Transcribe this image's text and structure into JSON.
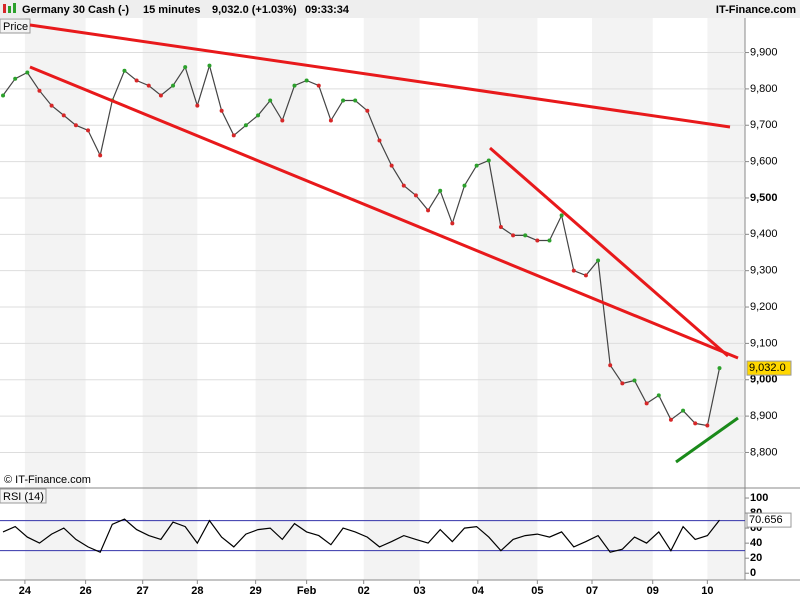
{
  "header": {
    "title": "Germany 30 Cash (-)",
    "interval": "15 minutes",
    "price": "9,032.0 (+1.03%)",
    "time": "09:33:34",
    "brand": "IT-Finance.com"
  },
  "chart_data": [
    {
      "type": "line",
      "label": "Price",
      "watermark": "© IT-Finance.com",
      "color": "#444444",
      "up_color": "#2ca02c",
      "down_color": "#d62728",
      "values": [
        9782,
        9828,
        9845,
        9795,
        9754,
        9727,
        9700,
        9686,
        9617,
        9768,
        9850,
        9823,
        9809,
        9782,
        9809,
        9860,
        9754,
        9864,
        9740,
        9672,
        9700,
        9727,
        9768,
        9713,
        9809,
        9823,
        9809,
        9713,
        9768,
        9768,
        9740,
        9658,
        9589,
        9534,
        9507,
        9466,
        9520,
        9430,
        9534,
        9589,
        9603,
        9420,
        9397,
        9397,
        9383,
        9383,
        9452,
        9300,
        9287,
        9328,
        9040,
        8990,
        8998,
        8935,
        8957,
        8890,
        8915,
        8880,
        8874,
        9032
      ],
      "value_labels": [
        null,
        null,
        null,
        null,
        null,
        null,
        null,
        null,
        null,
        null,
        null,
        null,
        null,
        null,
        null,
        null,
        null,
        null,
        null,
        null,
        null,
        null,
        null,
        null,
        null,
        null,
        null,
        null,
        null,
        null,
        null,
        null,
        null,
        null,
        null,
        null,
        null,
        null,
        null,
        null,
        null,
        null,
        null,
        null,
        null,
        null,
        null,
        null,
        null,
        null,
        null,
        null,
        null,
        null,
        null,
        null,
        null,
        null,
        null,
        "9,032.0"
      ],
      "xlim": [
        -0.25,
        61.1
      ],
      "ylim": [
        8705,
        9995
      ],
      "yticks": [
        {
          "value": 9900,
          "label": "9,900"
        },
        {
          "value": 9800,
          "label": "9,800"
        },
        {
          "value": 9700,
          "label": "9,700"
        },
        {
          "value": 9600,
          "label": "9,600"
        },
        {
          "value": 9500,
          "label": "9,500"
        },
        {
          "value": 9400,
          "label": "9,400"
        },
        {
          "value": 9300,
          "label": "9,300"
        },
        {
          "value": 9200,
          "label": "9,200"
        },
        {
          "value": 9100,
          "label": "9,100"
        },
        {
          "value": 9000,
          "label": "9,000"
        },
        {
          "value": 8900,
          "label": "8,900"
        },
        {
          "value": 8800,
          "label": "8,800"
        }
      ],
      "grid": true
    },
    {
      "type": "line",
      "label": "RSI (14)",
      "color": "#000000",
      "values": [
        55,
        62,
        48,
        40,
        52,
        60,
        45,
        35,
        28,
        65,
        72,
        58,
        50,
        45,
        68,
        62,
        40,
        70,
        48,
        35,
        52,
        58,
        60,
        45,
        66,
        55,
        50,
        38,
        60,
        55,
        48,
        35,
        42,
        50,
        45,
        40,
        58,
        42,
        60,
        62,
        48,
        30,
        45,
        50,
        52,
        48,
        55,
        35,
        42,
        50,
        28,
        32,
        48,
        40,
        55,
        30,
        62,
        45,
        50,
        70.656
      ],
      "levels": [
        70,
        30
      ],
      "level_color": "#3333aa",
      "xlim": [
        -0.25,
        61.1
      ],
      "ylim": [
        -9,
        112
      ],
      "yticks": [
        100,
        80,
        60,
        40,
        20,
        0
      ],
      "xticks": [
        {
          "value": 1.8,
          "label": "24"
        },
        {
          "value": 6.8,
          "label": "26"
        },
        {
          "value": 11.5,
          "label": "27"
        },
        {
          "value": 16,
          "label": "28"
        },
        {
          "value": 20.8,
          "label": "29"
        },
        {
          "value": 25,
          "label": "Feb"
        },
        {
          "value": 29.7,
          "label": "02"
        },
        {
          "value": 34.3,
          "label": "03"
        },
        {
          "value": 39.1,
          "label": "04"
        },
        {
          "value": 44,
          "label": "05"
        },
        {
          "value": 48.5,
          "label": "07"
        },
        {
          "value": 53.5,
          "label": "09"
        },
        {
          "value": 58,
          "label": "10"
        }
      ]
    }
  ]
}
